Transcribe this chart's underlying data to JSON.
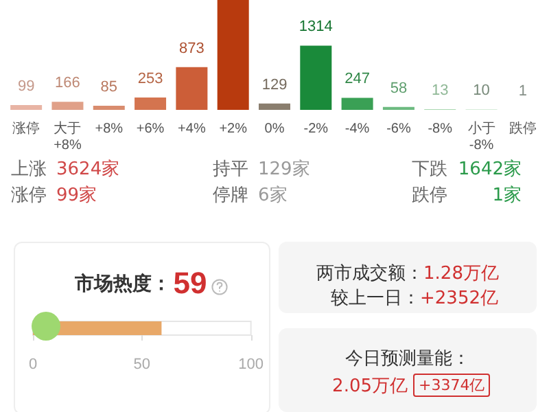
{
  "chart_data": [
    {
      "type": "bar",
      "categories": [
        "涨停",
        "大于\n+8%",
        "+8%",
        "+6%",
        "+4%",
        "+2%",
        "0%",
        "-2%",
        "-4%",
        "-6%",
        "-8%",
        "小于\n-8%",
        "跌停"
      ],
      "values": [
        99,
        166,
        85,
        253,
        873,
        2247,
        129,
        1314,
        247,
        58,
        13,
        10,
        1
      ],
      "value_labels": [
        "99",
        "166",
        "85",
        "253",
        "873",
        null,
        "129",
        "1314",
        "247",
        "58",
        "13",
        "10",
        "1"
      ],
      "colors": [
        "#e8b4a4",
        "#e0a088",
        "#d98c6e",
        "#d4744f",
        "#cc5e38",
        "#b83a0e",
        "#8a7e6e",
        "#1a8a3a",
        "#3aa055",
        "#6dba80",
        "#a8d8b0",
        "#c8e6cc",
        "#e0f0e2"
      ],
      "annotations": [
        "上涨",
        "3624家",
        "持平",
        "129家",
        "下跌",
        "1642家",
        "涨停",
        "99家",
        "停牌",
        "6家",
        "跌停",
        "1家"
      ]
    },
    {
      "type": "bar",
      "orientation": "horizontal",
      "title": "市场热度：59",
      "categories": [
        null
      ],
      "values": [
        59
      ],
      "color": "#e8a868",
      "xlim": [
        0,
        100
      ],
      "xticks": [
        0,
        50,
        100
      ],
      "grid": false
    },
    {
      "type": "other",
      "annotations": [
        "两市成交额：1.28万亿",
        "较上一日：+2352亿",
        "今日预测量能：",
        "2.05万亿",
        "+3374亿"
      ]
    }
  ]
}
